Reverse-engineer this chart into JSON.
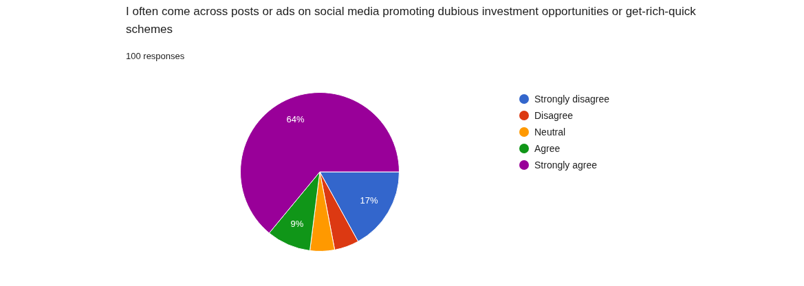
{
  "chart_data": {
    "type": "pie",
    "title": "I often come across posts or ads on social media promoting dubious investment opportunities or get-rich-quick schemes",
    "subtitle": "100 responses",
    "categories": [
      "Strongly disagree",
      "Disagree",
      "Neutral",
      "Agree",
      "Strongly agree"
    ],
    "values": [
      17,
      5,
      5,
      9,
      64
    ],
    "colors": [
      "#3366cc",
      "#dc3912",
      "#ff9900",
      "#109618",
      "#990099"
    ],
    "value_labels": [
      "17%",
      null,
      null,
      "9%",
      "64%"
    ],
    "legend": "right"
  }
}
